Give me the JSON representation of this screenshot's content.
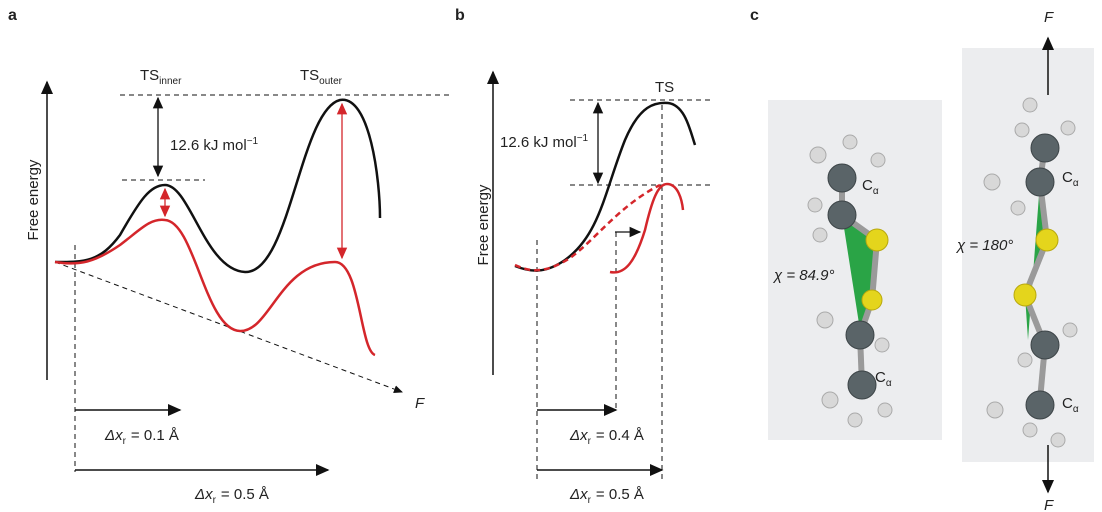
{
  "panels": [
    {
      "label": "a",
      "y_axis": "Free energy",
      "ts_inner": {
        "main": "TS",
        "sub": "inner"
      },
      "ts_outer": {
        "main": "TS",
        "sub": "outer"
      },
      "barrier": {
        "main": "12.6 kJ mol",
        "sup": "−1"
      },
      "dx_short": {
        "main": "Δx",
        "sub": "r",
        "rest": "= 0.1 Å"
      },
      "dx_long": {
        "main": "Δx",
        "sub": "r",
        "rest": "= 0.5 Å"
      },
      "force": "F"
    },
    {
      "label": "b",
      "y_axis": "Free energy",
      "ts": "TS",
      "barrier": {
        "main": "12.6 kJ mol",
        "sup": "−1"
      },
      "dx_short": {
        "main": "Δx",
        "sub": "r",
        "rest": "= 0.4 Å"
      },
      "dx_long": {
        "main": "Δx",
        "sub": "r",
        "rest": "= 0.5 Å"
      }
    },
    {
      "label": "c",
      "left": {
        "c_top": {
          "main": "C",
          "sub": "α"
        },
        "c_bottom": {
          "main": "C",
          "sub": "α"
        },
        "angle": "χ = 84.9°"
      },
      "right": {
        "c_top": {
          "main": "C",
          "sub": "α"
        },
        "c_bottom": {
          "main": "C",
          "sub": "α"
        },
        "angle": "χ = 180°",
        "force_top": "F",
        "force_bottom": "F"
      }
    }
  ]
}
